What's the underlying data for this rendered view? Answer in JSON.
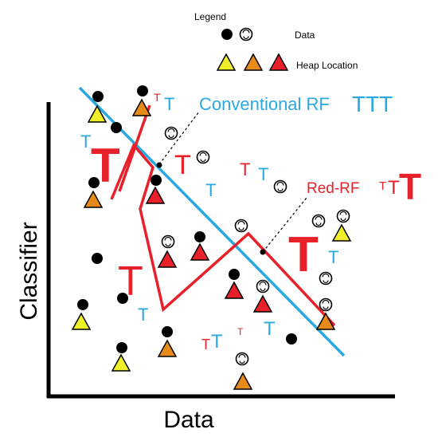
{
  "legend": {
    "title": "Legend",
    "data_label": "Data",
    "heap_label": "Heap Location",
    "colors": {
      "yellow": "#f0f02a",
      "orange": "#e88a1a",
      "red": "#e8202a"
    }
  },
  "axes": {
    "x_label": "Data",
    "y_label": "Classifier"
  },
  "annotations": {
    "conventional": "Conventional RF",
    "conventional_tail": "TTT",
    "red_rf": "Red-RF",
    "red_rf_tail_small": "T",
    "red_rf_tail_mid": "T",
    "red_rf_tail_big": "T"
  },
  "glyph": "T",
  "colors": {
    "blue": "#2aa8e0",
    "red": "#e8202a",
    "black": "#000000"
  }
}
